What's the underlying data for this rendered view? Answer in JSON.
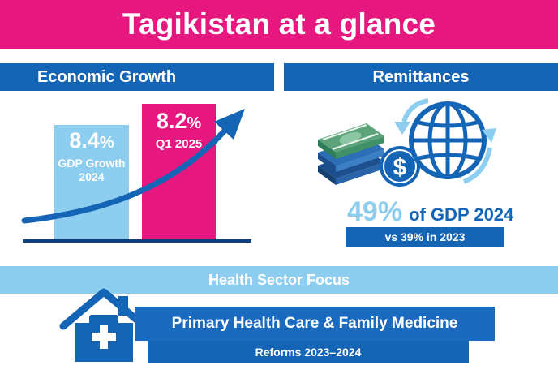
{
  "title": "Tagikistan at a glance",
  "sections": {
    "economic_growth": {
      "header": "Economic Growth",
      "bar_2024": {
        "value": "8.4",
        "unit": "%",
        "line1": "GDP Growth",
        "line2": "2024"
      },
      "bar_q1": {
        "value": "8.2",
        "unit": "%",
        "line1": "Q1 2025"
      }
    },
    "remittances": {
      "header": "Remittances",
      "percent": "49%",
      "text": "of GDP 2024",
      "comparison": "vs 39% in 2023",
      "icons": [
        "money-stack-icon",
        "dollar-coin-icon",
        "globe-icon",
        "refresh-arrows-icon"
      ]
    },
    "health": {
      "header": "Health Sector Focus",
      "banner": "Primary Health Care & Family Medicine",
      "sub": "Reforms 2023–2024",
      "icons": [
        "medical-house-icon"
      ]
    }
  },
  "colors": {
    "magenta": "#e6177f",
    "blue": "#1565b6",
    "light_blue": "#8ccdf0",
    "dark_blue": "#0f3f80",
    "money_green": "#2f7d5b"
  },
  "chart_data": {
    "type": "bar",
    "categories": [
      "GDP Growth 2024",
      "Q1 2025"
    ],
    "values": [
      8.4,
      8.2
    ],
    "title": "Economic Growth"
  }
}
